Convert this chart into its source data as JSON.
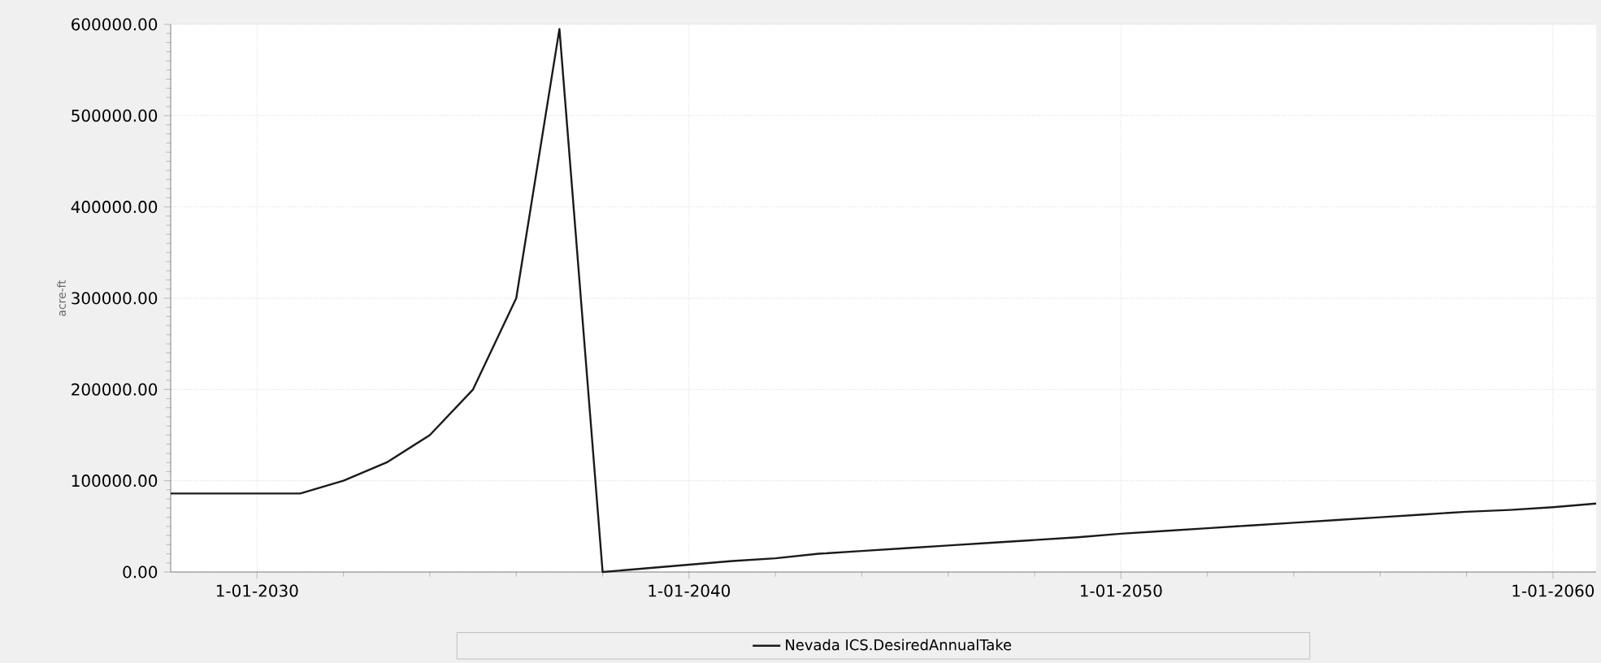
{
  "chart_data": {
    "type": "line",
    "ylabel": "acre-ft",
    "x": [
      "2028-01-01",
      "2029-01-01",
      "2030-01-01",
      "2031-01-01",
      "2032-01-01",
      "2033-01-01",
      "2034-01-01",
      "2035-01-01",
      "2036-01-01",
      "2037-01-01",
      "2038-01-01",
      "2039-01-01",
      "2040-01-01",
      "2041-01-01",
      "2042-01-01",
      "2043-01-01",
      "2044-01-01",
      "2045-01-01",
      "2046-01-01",
      "2047-01-01",
      "2048-01-01",
      "2049-01-01",
      "2050-01-01",
      "2051-01-01",
      "2052-01-01",
      "2053-01-01",
      "2054-01-01",
      "2055-01-01",
      "2056-01-01",
      "2057-01-01",
      "2058-01-01",
      "2059-01-01",
      "2060-01-01",
      "2061-01-01"
    ],
    "series": [
      {
        "name": "Nevada ICS.DesiredAnnualTake",
        "color": "#1a1a1a",
        "values": [
          86000,
          86000,
          86000,
          86000,
          100000,
          120000,
          150000,
          200000,
          300000,
          595000,
          0,
          4000,
          8000,
          12000,
          15000,
          20000,
          23000,
          26000,
          29000,
          32000,
          35000,
          38000,
          42000,
          45000,
          48000,
          51000,
          54000,
          57000,
          60000,
          63000,
          66000,
          68000,
          71000,
          75000
        ]
      }
    ],
    "xlim": [
      "2028-01-01",
      "2061-01-01"
    ],
    "xticks": [
      {
        "value": "2030-01-01",
        "label": "1-01-2030"
      },
      {
        "value": "2040-01-01",
        "label": "1-01-2040"
      },
      {
        "value": "2050-01-01",
        "label": "1-01-2050"
      },
      {
        "value": "2060-01-01",
        "label": "1-01-2060"
      }
    ],
    "ylim": [
      0,
      600000
    ],
    "yticks": [
      {
        "value": 0,
        "label": "0.00"
      },
      {
        "value": 100000,
        "label": "100000.00"
      },
      {
        "value": 200000,
        "label": "200000.00"
      },
      {
        "value": 300000,
        "label": "300000.00"
      },
      {
        "value": 400000,
        "label": "400000.00"
      },
      {
        "value": 500000,
        "label": "500000.00"
      },
      {
        "value": 600000,
        "label": "600000.00"
      }
    ],
    "grid": true,
    "legend": "bottom",
    "marker": "none",
    "line_style": "solid"
  }
}
